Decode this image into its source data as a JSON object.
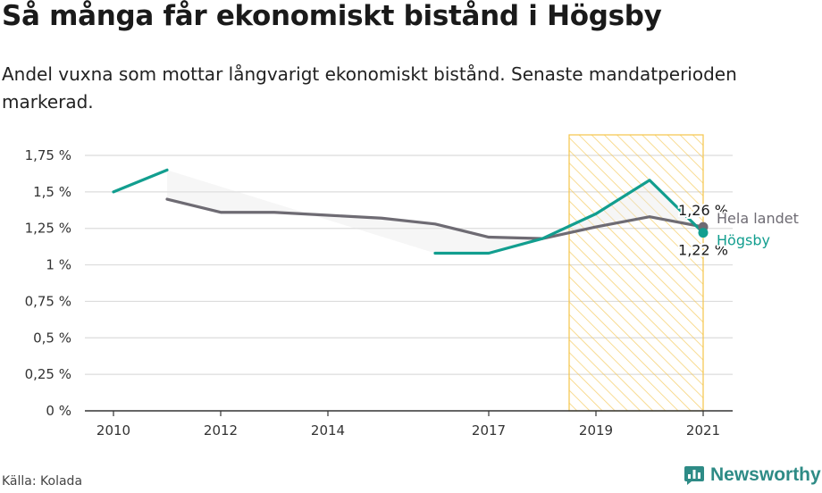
{
  "header": {
    "title": "Så många får ekonomiskt bistånd i Högsby",
    "subtitle": "Andel vuxna som mottar långvarigt ekonomiskt bistånd. Senaste mandatperioden markerad."
  },
  "footer": {
    "source": "Källa: Kolada",
    "brand": "Newsworthy",
    "brand_color": "#2e8b86",
    "brand_icon": "bar-chart-speech-icon"
  },
  "chart_data": {
    "type": "line",
    "title": "Så många får ekonomiskt bistånd i Högsby",
    "xlabel": "",
    "ylabel": "",
    "ylim": [
      0,
      1.75
    ],
    "xlim": [
      2010,
      2021
    ],
    "x_ticks": [
      2010,
      2012,
      2014,
      2017,
      2019,
      2021
    ],
    "x_tick_labels": [
      "2010",
      "2012",
      "2014",
      "2017",
      "2019",
      "2021"
    ],
    "y_ticks": [
      0,
      0.25,
      0.5,
      0.75,
      1,
      1.25,
      1.5,
      1.75
    ],
    "y_tick_labels": [
      "0 %",
      "0,25 %",
      "0,5 %",
      "0,75 %",
      "1 %",
      "1,25 %",
      "1,5 %",
      "1,75 %"
    ],
    "grid": true,
    "highlight": {
      "from": 2018.5,
      "to": 2021,
      "label": "Senaste mandatperioden",
      "color": "#f5c54a"
    },
    "series": [
      {
        "name": "Hela landet",
        "color": "#6e6b73",
        "x": [
          2011,
          2012,
          2013,
          2014,
          2015,
          2016,
          2017,
          2018,
          2019,
          2020,
          2021
        ],
        "values": [
          1.45,
          1.36,
          1.36,
          1.34,
          1.32,
          1.28,
          1.19,
          1.18,
          1.26,
          1.33,
          1.26
        ]
      },
      {
        "name": "Högsby",
        "color": "#129e8f",
        "x": [
          2010,
          2011,
          2012,
          2013,
          2014,
          2015,
          2016,
          2017,
          2018,
          2019,
          2020,
          2021
        ],
        "values": [
          1.5,
          1.65,
          null,
          null,
          null,
          null,
          1.08,
          1.08,
          1.18,
          1.35,
          1.58,
          1.22
        ]
      }
    ],
    "end_labels": [
      {
        "series": "Hela landet",
        "value_label": "1,26 %",
        "name_label": "Hela landet"
      },
      {
        "series": "Högsby",
        "value_label": "1,22 %",
        "name_label": "Högsby"
      }
    ]
  }
}
